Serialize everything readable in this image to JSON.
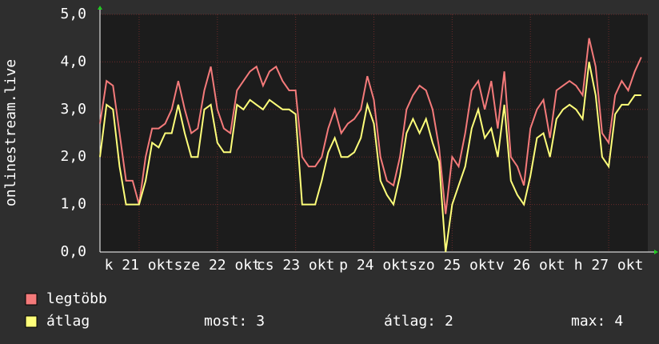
{
  "chart_data": {
    "type": "line",
    "y_label": "onlinestream.live",
    "x": [
      0,
      2,
      4,
      6,
      8,
      10,
      12,
      14,
      16,
      18,
      20,
      22,
      24,
      26,
      28,
      30,
      32,
      34,
      36,
      38,
      40,
      42,
      44,
      46,
      48,
      50,
      52,
      54,
      56,
      58,
      60,
      62,
      64,
      66,
      68,
      70,
      72,
      74,
      76,
      78,
      80,
      82,
      84,
      86,
      88,
      90,
      92,
      94,
      96,
      98,
      100,
      102,
      104,
      106,
      108,
      110,
      112,
      114,
      116,
      118,
      120,
      122,
      124,
      126,
      128,
      130,
      132,
      134,
      136,
      138,
      140,
      142,
      144,
      146,
      148,
      150,
      152,
      154,
      156,
      158,
      160,
      162,
      164,
      166
    ],
    "series": [
      {
        "name": "legtöbb",
        "color": "#f47a7a",
        "values": [
          2.7,
          3.6,
          3.5,
          2.5,
          1.5,
          1.5,
          1.0,
          2.0,
          2.6,
          2.6,
          2.7,
          3.0,
          3.6,
          3.0,
          2.5,
          2.6,
          3.4,
          3.9,
          3.0,
          2.6,
          2.5,
          3.4,
          3.6,
          3.8,
          3.9,
          3.5,
          3.8,
          3.9,
          3.6,
          3.4,
          3.4,
          2.0,
          1.8,
          1.8,
          2.0,
          2.6,
          3.0,
          2.5,
          2.7,
          2.8,
          3.0,
          3.7,
          3.2,
          2.0,
          1.5,
          1.4,
          2.0,
          3.0,
          3.3,
          3.5,
          3.4,
          3.0,
          2.2,
          0.8,
          2.0,
          1.8,
          2.5,
          3.4,
          3.6,
          3.0,
          3.6,
          2.6,
          3.8,
          2.0,
          1.8,
          1.4,
          2.6,
          3.0,
          3.2,
          2.4,
          3.4,
          3.5,
          3.6,
          3.5,
          3.3,
          4.5,
          3.9,
          2.5,
          2.3,
          3.3,
          3.6,
          3.4,
          3.8,
          4.1
        ]
      },
      {
        "name": "átlag",
        "color": "#ffff7a",
        "values": [
          2.0,
          3.1,
          3.0,
          1.8,
          1.0,
          1.0,
          1.0,
          1.5,
          2.3,
          2.2,
          2.5,
          2.5,
          3.1,
          2.5,
          2.0,
          2.0,
          3.0,
          3.1,
          2.3,
          2.1,
          2.1,
          3.1,
          3.0,
          3.2,
          3.1,
          3.0,
          3.2,
          3.1,
          3.0,
          3.0,
          2.9,
          1.0,
          1.0,
          1.0,
          1.5,
          2.1,
          2.4,
          2.0,
          2.0,
          2.1,
          2.4,
          3.1,
          2.7,
          1.5,
          1.2,
          1.0,
          1.6,
          2.5,
          2.8,
          2.5,
          2.8,
          2.3,
          1.9,
          0.0,
          1.0,
          1.4,
          1.8,
          2.6,
          3.0,
          2.4,
          2.6,
          2.0,
          3.1,
          1.5,
          1.2,
          1.0,
          1.6,
          2.4,
          2.5,
          2.0,
          2.8,
          3.0,
          3.1,
          3.0,
          2.8,
          4.0,
          3.3,
          2.0,
          1.8,
          2.9,
          3.1,
          3.1,
          3.3,
          3.3
        ]
      }
    ],
    "xlim": [
      0,
      168
    ],
    "xticks": [
      {
        "value": 12,
        "label": "k 21 okt"
      },
      {
        "value": 36,
        "label": "sze 22 okt"
      },
      {
        "value": 60,
        "label": "cs 23 okt"
      },
      {
        "value": 84,
        "label": "p 24 okt"
      },
      {
        "value": 108,
        "label": "szo 25 okt"
      },
      {
        "value": 132,
        "label": "v 26 okt"
      },
      {
        "value": 156,
        "label": "h 27 okt"
      }
    ],
    "ylim": [
      0,
      5
    ],
    "yticks": [
      {
        "value": 0,
        "label": "0,0"
      },
      {
        "value": 1,
        "label": "1,0"
      },
      {
        "value": 2,
        "label": "2,0"
      },
      {
        "value": 3,
        "label": "3,0"
      },
      {
        "value": 4,
        "label": "4,0"
      },
      {
        "value": 5,
        "label": "5,0"
      }
    ],
    "grid": true,
    "legend": "bottom-left",
    "stats": [
      {
        "label": "most:",
        "value": 3
      },
      {
        "label": "átlag:",
        "value": 2
      },
      {
        "label": "max:",
        "value": 4
      }
    ]
  }
}
